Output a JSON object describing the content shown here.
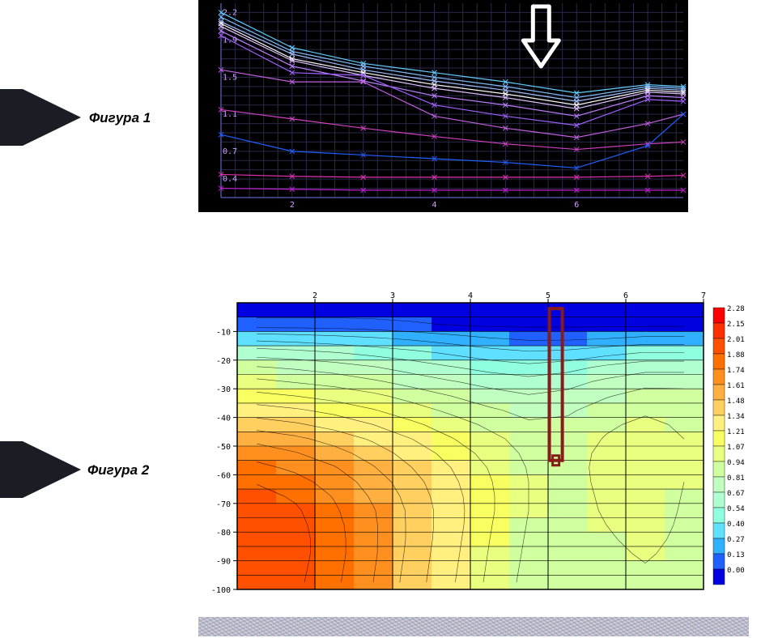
{
  "figure1": {
    "label": "Фигура 1",
    "type": "line",
    "background_color": "#000000",
    "grid_color": "#2a2a4a",
    "axis_color": "#5050a0",
    "xlim": [
      1,
      7.5
    ],
    "ylim": [
      0.2,
      2.3
    ],
    "xticks": [
      2,
      4,
      6
    ],
    "yticks": [
      0.4,
      0.7,
      1.1,
      1.5,
      1.9,
      2.2
    ],
    "tick_fontsize": 10,
    "tick_color": "#d0a0ff",
    "series": [
      {
        "color": "#60d0ff",
        "y": [
          2.2,
          1.82,
          1.65,
          1.55,
          1.45,
          1.33,
          1.42,
          1.4
        ]
      },
      {
        "color": "#80c0ff",
        "y": [
          2.15,
          1.78,
          1.62,
          1.5,
          1.4,
          1.28,
          1.4,
          1.38
        ]
      },
      {
        "color": "#a0c0ff",
        "y": [
          2.1,
          1.75,
          1.58,
          1.46,
          1.36,
          1.24,
          1.38,
          1.36
        ]
      },
      {
        "color": "#ffffff",
        "y": [
          2.08,
          1.7,
          1.55,
          1.42,
          1.32,
          1.2,
          1.36,
          1.34
        ]
      },
      {
        "color": "#e0c0ff",
        "y": [
          2.05,
          1.68,
          1.52,
          1.38,
          1.28,
          1.16,
          1.34,
          1.32
        ]
      },
      {
        "color": "#c080ff",
        "y": [
          2.0,
          1.62,
          1.46,
          1.3,
          1.2,
          1.08,
          1.3,
          1.28
        ]
      },
      {
        "color": "#a060ff",
        "y": [
          1.95,
          1.55,
          1.52,
          1.2,
          1.08,
          0.98,
          1.26,
          1.24
        ]
      },
      {
        "color": "#c060e0",
        "y": [
          1.58,
          1.45,
          1.45,
          1.08,
          0.95,
          0.85,
          1.0,
          1.1
        ]
      },
      {
        "color": "#d040c0",
        "y": [
          1.15,
          1.05,
          0.95,
          0.86,
          0.78,
          0.72,
          0.78,
          0.8
        ]
      },
      {
        "color": "#2060ff",
        "y": [
          0.88,
          0.7,
          0.66,
          0.62,
          0.58,
          0.52,
          0.76,
          1.1
        ]
      },
      {
        "color": "#e030b0",
        "y": [
          0.45,
          0.43,
          0.42,
          0.42,
          0.42,
          0.42,
          0.43,
          0.44
        ]
      },
      {
        "color": "#c020d0",
        "y": [
          0.3,
          0.29,
          0.28,
          0.28,
          0.28,
          0.28,
          0.28,
          0.28
        ]
      }
    ],
    "x_values": [
      1,
      2,
      3,
      4,
      5,
      6,
      7,
      7.5
    ],
    "arrow": {
      "x": 5.5,
      "color": "#ffffff"
    }
  },
  "figure2": {
    "label": "Фигура 2",
    "type": "heatmap",
    "background_color": "#ffffff",
    "grid_color": "#000000",
    "xlim": [
      1,
      7
    ],
    "ylim": [
      -100,
      0
    ],
    "xticks": [
      2,
      3,
      4,
      5,
      6,
      7
    ],
    "yticks": [
      -10,
      -20,
      -30,
      -40,
      -50,
      -60,
      -70,
      -80,
      -90,
      -100
    ],
    "tick_fontsize": 10,
    "tick_color": "#000000",
    "legend": {
      "values": [
        2.28,
        2.15,
        2.01,
        1.88,
        1.74,
        1.61,
        1.48,
        1.34,
        1.21,
        1.07,
        0.94,
        0.81,
        0.67,
        0.54,
        0.4,
        0.27,
        0.13,
        0.0
      ],
      "colors": [
        "#ff0000",
        "#ff3000",
        "#ff5000",
        "#ff7000",
        "#ff9020",
        "#ffb040",
        "#ffd060",
        "#fff080",
        "#f8ff60",
        "#e8ff80",
        "#d0ffa0",
        "#c0ffc0",
        "#b0ffd0",
        "#90ffe0",
        "#60e0ff",
        "#30b0ff",
        "#2060ff",
        "#0000e0"
      ],
      "fontsize": 9
    },
    "cells_x": [
      1.0,
      1.5,
      2.0,
      2.5,
      3.0,
      3.5,
      4.0,
      4.5,
      5.0,
      5.5,
      6.0,
      6.5,
      7.0
    ],
    "cells_y": [
      0,
      -5,
      -10,
      -15,
      -20,
      -25,
      -30,
      -35,
      -40,
      -45,
      -50,
      -55,
      -60,
      -65,
      -70,
      -75,
      -80,
      -85,
      -90,
      -95,
      -100
    ],
    "values": [
      [
        0.05,
        0.05,
        0.05,
        0.05,
        0.05,
        0.05,
        0.05,
        0.05,
        0.05,
        0.05,
        0.05,
        0.05
      ],
      [
        0.2,
        0.2,
        0.2,
        0.18,
        0.15,
        0.12,
        0.1,
        0.1,
        0.1,
        0.1,
        0.1,
        0.1
      ],
      [
        0.5,
        0.48,
        0.45,
        0.42,
        0.38,
        0.33,
        0.28,
        0.25,
        0.25,
        0.27,
        0.3,
        0.3
      ],
      [
        0.75,
        0.72,
        0.68,
        0.63,
        0.58,
        0.52,
        0.46,
        0.42,
        0.44,
        0.5,
        0.55,
        0.55
      ],
      [
        0.95,
        0.92,
        0.88,
        0.82,
        0.75,
        0.68,
        0.62,
        0.58,
        0.62,
        0.7,
        0.76,
        0.76
      ],
      [
        1.1,
        1.06,
        1.02,
        0.96,
        0.89,
        0.82,
        0.76,
        0.72,
        0.76,
        0.84,
        0.9,
        0.9
      ],
      [
        1.25,
        1.21,
        1.16,
        1.1,
        1.02,
        0.94,
        0.87,
        0.82,
        0.85,
        0.93,
        0.99,
        0.98
      ],
      [
        1.4,
        1.36,
        1.3,
        1.22,
        1.13,
        1.04,
        0.96,
        0.9,
        0.92,
        1.0,
        1.05,
        1.02
      ],
      [
        1.55,
        1.5,
        1.43,
        1.34,
        1.24,
        1.14,
        1.04,
        0.96,
        0.97,
        1.05,
        1.1,
        1.05
      ],
      [
        1.7,
        1.64,
        1.56,
        1.46,
        1.34,
        1.22,
        1.11,
        1.01,
        1.0,
        1.08,
        1.13,
        1.07
      ],
      [
        1.82,
        1.75,
        1.66,
        1.55,
        1.42,
        1.29,
        1.16,
        1.04,
        1.02,
        1.1,
        1.15,
        1.08
      ],
      [
        1.92,
        1.85,
        1.75,
        1.62,
        1.48,
        1.34,
        1.2,
        1.06,
        1.02,
        1.11,
        1.17,
        1.08
      ],
      [
        2.0,
        1.93,
        1.82,
        1.68,
        1.53,
        1.37,
        1.22,
        1.07,
        1.01,
        1.11,
        1.18,
        1.07
      ],
      [
        2.06,
        1.99,
        1.87,
        1.72,
        1.56,
        1.39,
        1.23,
        1.07,
        1.0,
        1.1,
        1.18,
        1.06
      ],
      [
        2.1,
        2.03,
        1.9,
        1.75,
        1.58,
        1.4,
        1.23,
        1.07,
        0.99,
        1.09,
        1.17,
        1.05
      ],
      [
        2.12,
        2.05,
        1.92,
        1.76,
        1.58,
        1.4,
        1.22,
        1.06,
        0.98,
        1.07,
        1.15,
        1.04
      ],
      [
        2.13,
        2.06,
        1.93,
        1.76,
        1.58,
        1.39,
        1.21,
        1.05,
        0.97,
        1.05,
        1.12,
        1.03
      ],
      [
        2.13,
        2.06,
        1.93,
        1.76,
        1.57,
        1.38,
        1.2,
        1.04,
        0.96,
        1.03,
        1.09,
        1.02
      ],
      [
        2.13,
        2.05,
        1.92,
        1.75,
        1.56,
        1.37,
        1.19,
        1.03,
        0.96,
        1.01,
        1.06,
        1.01
      ],
      [
        2.12,
        2.04,
        1.91,
        1.74,
        1.55,
        1.36,
        1.18,
        1.02,
        0.95,
        0.99,
        1.03,
        1.0
      ]
    ],
    "marker": {
      "x": 5.1,
      "y_top": -2,
      "y_bot": -55,
      "color": "#8b1a1a",
      "width": 4
    }
  }
}
